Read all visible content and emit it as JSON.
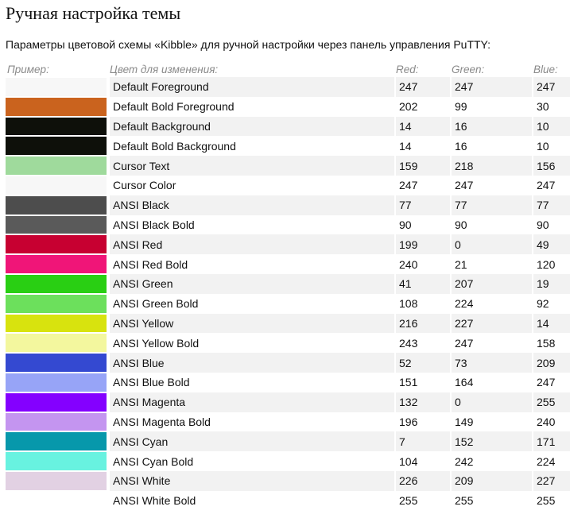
{
  "title": "Ручная настройка темы",
  "intro": "Параметры цветовой схемы «Kibble» для ручной настройки через панель управления PuTTY:",
  "table": {
    "headers": {
      "sample": "Пример:",
      "color": "Цвет для изменения:",
      "red": "Red:",
      "green": "Green:",
      "blue": "Blue:"
    },
    "rows": [
      {
        "name": "Default Foreground",
        "r": "247",
        "g": "247",
        "b": "247",
        "swatch": "#f7f7f7"
      },
      {
        "name": "Default Bold Foreground",
        "r": "202",
        "g": "99",
        "b": "30",
        "swatch": "#ca631e"
      },
      {
        "name": "Default Background",
        "r": "14",
        "g": "16",
        "b": "10",
        "swatch": "#0e100a"
      },
      {
        "name": "Default Bold Background",
        "r": "14",
        "g": "16",
        "b": "10",
        "swatch": "#0e100a"
      },
      {
        "name": "Cursor Text",
        "r": "159",
        "g": "218",
        "b": "156",
        "swatch": "#9fda9c"
      },
      {
        "name": "Cursor Color",
        "r": "247",
        "g": "247",
        "b": "247",
        "swatch": "#f7f7f7"
      },
      {
        "name": "ANSI Black",
        "r": "77",
        "g": "77",
        "b": "77",
        "swatch": "#4d4d4d"
      },
      {
        "name": "ANSI Black Bold",
        "r": "90",
        "g": "90",
        "b": "90",
        "swatch": "#5a5a5a"
      },
      {
        "name": "ANSI Red",
        "r": "199",
        "g": "0",
        "b": "49",
        "swatch": "#c70031"
      },
      {
        "name": "ANSI Red Bold",
        "r": "240",
        "g": "21",
        "b": "120",
        "swatch": "#f01578"
      },
      {
        "name": "ANSI Green",
        "r": "41",
        "g": "207",
        "b": "19",
        "swatch": "#29cf13"
      },
      {
        "name": "ANSI Green Bold",
        "r": "108",
        "g": "224",
        "b": "92",
        "swatch": "#6ce05c"
      },
      {
        "name": "ANSI Yellow",
        "r": "216",
        "g": "227",
        "b": "14",
        "swatch": "#d8e30e"
      },
      {
        "name": "ANSI Yellow Bold",
        "r": "243",
        "g": "247",
        "b": "158",
        "swatch": "#f3f79e"
      },
      {
        "name": "ANSI Blue",
        "r": "52",
        "g": "73",
        "b": "209",
        "swatch": "#3449d1"
      },
      {
        "name": "ANSI Blue Bold",
        "r": "151",
        "g": "164",
        "b": "247",
        "swatch": "#97a4f7"
      },
      {
        "name": "ANSI Magenta",
        "r": "132",
        "g": "0",
        "b": "255",
        "swatch": "#8400ff"
      },
      {
        "name": "ANSI Magenta Bold",
        "r": "196",
        "g": "149",
        "b": "240",
        "swatch": "#c495f0"
      },
      {
        "name": "ANSI Cyan",
        "r": "7",
        "g": "152",
        "b": "171",
        "swatch": "#0798ab"
      },
      {
        "name": "ANSI Cyan Bold",
        "r": "104",
        "g": "242",
        "b": "224",
        "swatch": "#68f2e0"
      },
      {
        "name": "ANSI White",
        "r": "226",
        "g": "209",
        "b": "227",
        "swatch": "#e2d1e3"
      },
      {
        "name": "ANSI White Bold",
        "r": "255",
        "g": "255",
        "b": "255",
        "swatch": "#ffffff"
      }
    ]
  }
}
